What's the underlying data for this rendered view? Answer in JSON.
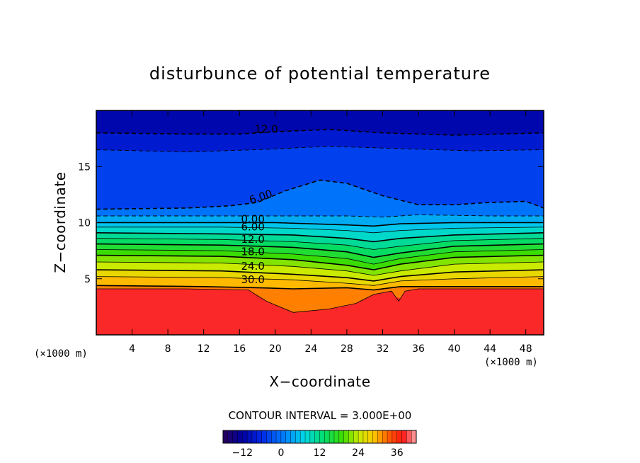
{
  "chart_data": {
    "type": "heatmap",
    "title": "disturbunce of potential temperature",
    "xlabel": "X−coordinate",
    "ylabel": "Z−coordinate",
    "x_unit_label": "(×1000 m)",
    "x_ticks": [
      4,
      8,
      12,
      16,
      20,
      24,
      28,
      32,
      36,
      40,
      44,
      48
    ],
    "y_ticks": [
      5,
      10,
      15
    ],
    "xlim": [
      0,
      50
    ],
    "ylim": [
      0,
      20
    ],
    "contour_interval_text": "CONTOUR INTERVAL = 3.000E+00",
    "colorbar": {
      "vmin": -18,
      "vmax": 42,
      "ticks": [
        -12,
        0,
        12,
        24,
        36
      ]
    },
    "grid": false,
    "contour_labels": [
      {
        "text": "12.0",
        "x": 19,
        "y": 18.0,
        "dashed": true
      },
      {
        "text": "6.00",
        "x": 18.5,
        "y": 12.0,
        "dashed": true
      },
      {
        "text": "0.00",
        "x": 17.5,
        "y": 10.0
      },
      {
        "text": "6.00",
        "x": 17.5,
        "y": 9.3
      },
      {
        "text": "12.0",
        "x": 17.5,
        "y": 8.2
      },
      {
        "text": "18.0",
        "x": 17.5,
        "y": 7.1
      },
      {
        "text": "24.0",
        "x": 17.5,
        "y": 5.8
      },
      {
        "text": "30.0",
        "x": 17.5,
        "y": 4.6
      }
    ],
    "dashed_contours": [
      {
        "level": 12,
        "points": [
          [
            0,
            18.0
          ],
          [
            10,
            17.9
          ],
          [
            16,
            17.9
          ],
          [
            20,
            18.1
          ],
          [
            26,
            18.3
          ],
          [
            32,
            18.0
          ],
          [
            40,
            17.8
          ],
          [
            50,
            18.0
          ]
        ]
      },
      {
        "level": 9,
        "points": [
          [
            0,
            16.5
          ],
          [
            10,
            16.3
          ],
          [
            18,
            16.5
          ],
          [
            26,
            16.8
          ],
          [
            34,
            16.6
          ],
          [
            42,
            16.4
          ],
          [
            50,
            16.5
          ]
        ]
      },
      {
        "level": 6,
        "points": [
          [
            0,
            11.2
          ],
          [
            10,
            11.3
          ],
          [
            15,
            11.5
          ],
          [
            18,
            11.8
          ],
          [
            21,
            12.8
          ],
          [
            25,
            13.8
          ],
          [
            28,
            13.5
          ],
          [
            32,
            12.4
          ],
          [
            36,
            11.6
          ],
          [
            40,
            11.6
          ],
          [
            44,
            11.8
          ],
          [
            48,
            11.9
          ],
          [
            50,
            11.3
          ]
        ]
      },
      {
        "level": 3,
        "points": [
          [
            0,
            10.6
          ],
          [
            12,
            10.6
          ],
          [
            20,
            10.6
          ],
          [
            28,
            10.6
          ],
          [
            32,
            10.5
          ],
          [
            36,
            10.7
          ],
          [
            44,
            10.6
          ],
          [
            50,
            10.6
          ]
        ]
      }
    ],
    "solid_contours": [
      {
        "level": 0,
        "points": [
          [
            0,
            10.0
          ],
          [
            12,
            10.0
          ],
          [
            20,
            10.0
          ],
          [
            28,
            9.8
          ],
          [
            31,
            9.7
          ],
          [
            34,
            9.9
          ],
          [
            40,
            10.0
          ],
          [
            50,
            10.0
          ]
        ]
      },
      {
        "level": 3,
        "points": [
          [
            0,
            9.6
          ],
          [
            14,
            9.6
          ],
          [
            22,
            9.5
          ],
          [
            28,
            9.3
          ],
          [
            31,
            9.1
          ],
          [
            34,
            9.3
          ],
          [
            40,
            9.5
          ],
          [
            50,
            9.6
          ]
        ]
      },
      {
        "level": 6,
        "points": [
          [
            0,
            9.1
          ],
          [
            14,
            9.0
          ],
          [
            22,
            8.9
          ],
          [
            28,
            8.6
          ],
          [
            31,
            8.3
          ],
          [
            34,
            8.6
          ],
          [
            40,
            8.9
          ],
          [
            50,
            9.1
          ]
        ]
      },
      {
        "level": 9,
        "points": [
          [
            0,
            8.6
          ],
          [
            14,
            8.5
          ],
          [
            22,
            8.3
          ],
          [
            28,
            8.0
          ],
          [
            31,
            7.6
          ],
          [
            34,
            7.9
          ],
          [
            40,
            8.4
          ],
          [
            50,
            8.6
          ]
        ]
      },
      {
        "level": 12,
        "points": [
          [
            0,
            8.1
          ],
          [
            14,
            8.0
          ],
          [
            22,
            7.8
          ],
          [
            28,
            7.4
          ],
          [
            31,
            6.9
          ],
          [
            34,
            7.3
          ],
          [
            40,
            7.9
          ],
          [
            50,
            8.1
          ]
        ]
      },
      {
        "level": 15,
        "points": [
          [
            0,
            7.6
          ],
          [
            14,
            7.5
          ],
          [
            22,
            7.2
          ],
          [
            28,
            6.8
          ],
          [
            31,
            6.3
          ],
          [
            34,
            6.8
          ],
          [
            40,
            7.4
          ],
          [
            50,
            7.6
          ]
        ]
      },
      {
        "level": 18,
        "points": [
          [
            0,
            7.1
          ],
          [
            14,
            7.0
          ],
          [
            22,
            6.7
          ],
          [
            28,
            6.2
          ],
          [
            31,
            5.8
          ],
          [
            34,
            6.3
          ],
          [
            40,
            6.9
          ],
          [
            50,
            7.1
          ]
        ]
      },
      {
        "level": 21,
        "points": [
          [
            0,
            6.5
          ],
          [
            14,
            6.4
          ],
          [
            22,
            6.1
          ],
          [
            28,
            5.7
          ],
          [
            31,
            5.3
          ],
          [
            34,
            5.7
          ],
          [
            40,
            6.3
          ],
          [
            50,
            6.5
          ]
        ]
      },
      {
        "level": 24,
        "points": [
          [
            0,
            5.8
          ],
          [
            14,
            5.7
          ],
          [
            22,
            5.4
          ],
          [
            28,
            5.1
          ],
          [
            31,
            4.8
          ],
          [
            34,
            5.2
          ],
          [
            40,
            5.6
          ],
          [
            50,
            5.8
          ]
        ]
      },
      {
        "level": 27,
        "points": [
          [
            0,
            5.2
          ],
          [
            14,
            5.1
          ],
          [
            22,
            4.9
          ],
          [
            28,
            4.6
          ],
          [
            31,
            4.4
          ],
          [
            34,
            4.8
          ],
          [
            40,
            5.0
          ],
          [
            50,
            5.2
          ]
        ]
      },
      {
        "level": 30,
        "points": [
          [
            0,
            4.4
          ],
          [
            12,
            4.3
          ],
          [
            18,
            4.2
          ],
          [
            22,
            4.1
          ],
          [
            28,
            4.2
          ],
          [
            31,
            4.0
          ],
          [
            34,
            4.3
          ],
          [
            40,
            4.3
          ],
          [
            50,
            4.3
          ]
        ]
      },
      {
        "level": 33,
        "points": [
          [
            0,
            4.1
          ],
          [
            10,
            4.1
          ],
          [
            17,
            4.0
          ],
          [
            19,
            3.0
          ],
          [
            22,
            2.0
          ],
          [
            26,
            2.3
          ],
          [
            29,
            2.8
          ],
          [
            31,
            3.6
          ],
          [
            33,
            3.9
          ],
          [
            33.8,
            3.0
          ],
          [
            34.5,
            3.9
          ],
          [
            36,
            4.1
          ],
          [
            50,
            4.1
          ]
        ]
      }
    ]
  }
}
